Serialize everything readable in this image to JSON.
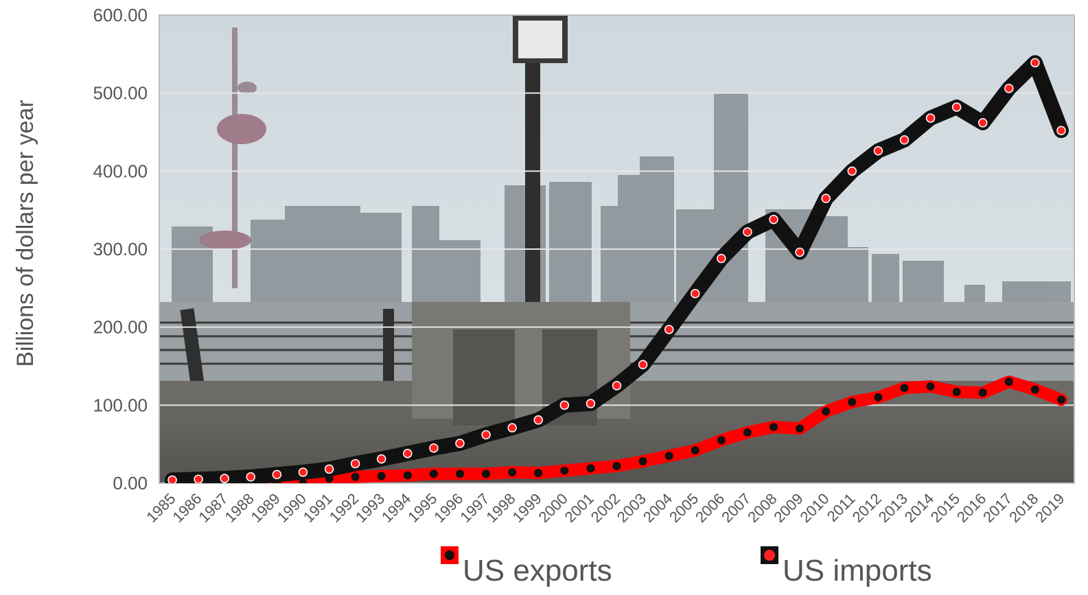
{
  "chart_data": {
    "type": "line",
    "title": "",
    "xlabel": "",
    "ylabel": "Billions of dollars per year",
    "ylim": [
      0,
      600
    ],
    "y_ticks": [
      "0.00",
      "100.00",
      "200.00",
      "300.00",
      "400.00",
      "500.00",
      "600.00"
    ],
    "categories": [
      "1985",
      "1986",
      "1987",
      "1988",
      "1989",
      "1990",
      "1991",
      "1992",
      "1993",
      "1994",
      "1995",
      "1996",
      "1997",
      "1998",
      "1999",
      "2000",
      "2001",
      "2002",
      "2003",
      "2004",
      "2005",
      "2006",
      "2007",
      "2008",
      "2009",
      "2010",
      "2011",
      "2012",
      "2013",
      "2014",
      "2015",
      "2016",
      "2017",
      "2018",
      "2019"
    ],
    "series": [
      {
        "name": "US exports",
        "line_color": "#ff0000",
        "marker_color": "#111111",
        "values": [
          0.0,
          0.0,
          0.0,
          0.0,
          0.0,
          0.0,
          6,
          8,
          9,
          10,
          12,
          12,
          12,
          14,
          13,
          16,
          19,
          22,
          28,
          35,
          42,
          55,
          65,
          72,
          70,
          92,
          104,
          110,
          122,
          124,
          117,
          116,
          130,
          120,
          107
        ]
      },
      {
        "name": "US imports",
        "line_color": "#111111",
        "marker_color": "#ff2222",
        "values": [
          4,
          5,
          6,
          8,
          11,
          14,
          18,
          25,
          31,
          38,
          45,
          51,
          62,
          71,
          81,
          100,
          102,
          125,
          152,
          197,
          243,
          288,
          322,
          338,
          296,
          365,
          400,
          426,
          440,
          468,
          482,
          462,
          506,
          539,
          452
        ]
      }
    ],
    "grid": true,
    "legend_position": "bottom",
    "background": "photo of a city skyline along a riverside promenade"
  }
}
